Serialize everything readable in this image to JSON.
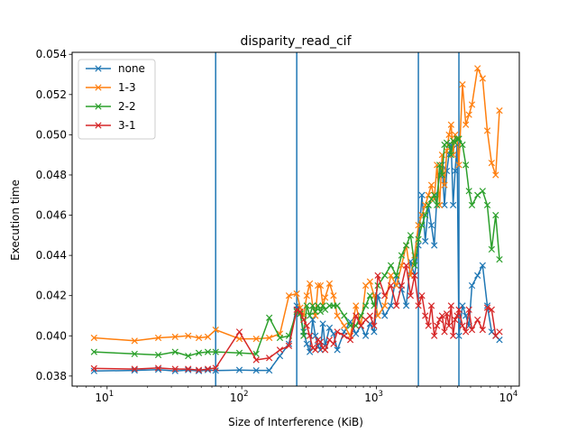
{
  "chart_data": {
    "type": "line",
    "title": "disparity_read_cif",
    "xlabel": "Size of Interference (KiB)",
    "ylabel": "Execution time",
    "xscale": "log",
    "xlim": [
      5.5,
      11500
    ],
    "ylim": [
      0.0375,
      0.0541
    ],
    "xticks": [
      {
        "value": 10,
        "base": "10",
        "exp": "1"
      },
      {
        "value": 100,
        "base": "10",
        "exp": "2"
      },
      {
        "value": 1000,
        "base": "10",
        "exp": "3"
      },
      {
        "value": 10000,
        "base": "10",
        "exp": "4"
      }
    ],
    "yticks": [
      0.038,
      0.04,
      0.042,
      0.044,
      0.046,
      0.048,
      0.05,
      0.052,
      0.054
    ],
    "ytick_labels": [
      "0.038",
      "0.040",
      "0.042",
      "0.044",
      "0.046",
      "0.048",
      "0.050",
      "0.052",
      "0.054"
    ],
    "vlines": [
      64,
      256,
      2048,
      4096
    ],
    "vline_color": "#1f77b4",
    "grid": false,
    "legend_position": "top-left",
    "series": [
      {
        "name": "none",
        "color": "#1f77b4",
        "marker": "x",
        "x": [
          8,
          16,
          24,
          32,
          40,
          48,
          56,
          64,
          96,
          128,
          160,
          192,
          224,
          256,
          272,
          288,
          304,
          320,
          336,
          352,
          368,
          384,
          400,
          416,
          448,
          480,
          512,
          576,
          640,
          704,
          768,
          832,
          896,
          960,
          1024,
          1152,
          1280,
          1408,
          1536,
          1664,
          1792,
          1920,
          2048,
          2176,
          2304,
          2432,
          2560,
          2688,
          2816,
          2944,
          3072,
          3200,
          3328,
          3456,
          3584,
          3712,
          3840,
          3968,
          4096,
          4352,
          4608,
          4864,
          5120,
          5632,
          6144,
          6656,
          7168,
          7680,
          8192
        ],
        "y": [
          0.03825,
          0.03828,
          0.03832,
          0.03825,
          0.0383,
          0.03825,
          0.0383,
          0.03827,
          0.0383,
          0.03828,
          0.03828,
          0.039,
          0.0396,
          0.0415,
          0.0411,
          0.0402,
          0.0396,
          0.0392,
          0.0408,
          0.04,
          0.0395,
          0.0393,
          0.0406,
          0.0395,
          0.0404,
          0.0401,
          0.0393,
          0.0402,
          0.0407,
          0.0401,
          0.0405,
          0.04,
          0.0406,
          0.0402,
          0.042,
          0.041,
          0.0415,
          0.043,
          0.0423,
          0.0415,
          0.0437,
          0.043,
          0.0445,
          0.047,
          0.0447,
          0.0465,
          0.0455,
          0.0445,
          0.047,
          0.048,
          0.0485,
          0.0465,
          0.0482,
          0.049,
          0.0495,
          0.0465,
          0.0482,
          0.0495,
          0.04,
          0.0415,
          0.041,
          0.0405,
          0.0425,
          0.043,
          0.0435,
          0.0415,
          0.0402,
          0.04,
          0.0398
        ]
      },
      {
        "name": "1-3",
        "color": "#ff7f0e",
        "marker": "x",
        "x": [
          8,
          16,
          24,
          32,
          40,
          48,
          56,
          64,
          96,
          128,
          160,
          192,
          224,
          256,
          272,
          288,
          304,
          320,
          336,
          352,
          368,
          384,
          400,
          416,
          448,
          480,
          512,
          576,
          640,
          704,
          768,
          832,
          896,
          960,
          1024,
          1152,
          1280,
          1408,
          1536,
          1664,
          1792,
          1920,
          2048,
          2176,
          2304,
          2432,
          2560,
          2688,
          2816,
          2944,
          3072,
          3200,
          3328,
          3456,
          3584,
          3712,
          3840,
          3968,
          4096,
          4352,
          4608,
          4864,
          5120,
          5632,
          6144,
          6656,
          7168,
          7680,
          8192
        ],
        "y": [
          0.0399,
          0.03975,
          0.0399,
          0.03995,
          0.04,
          0.0399,
          0.03995,
          0.0403,
          0.03985,
          0.03985,
          0.0399,
          0.0401,
          0.042,
          0.0421,
          0.0414,
          0.041,
          0.042,
          0.0426,
          0.0415,
          0.041,
          0.0425,
          0.0425,
          0.0415,
          0.0419,
          0.0426,
          0.042,
          0.041,
          0.0405,
          0.04,
          0.0415,
          0.0405,
          0.0425,
          0.0427,
          0.042,
          0.041,
          0.0415,
          0.043,
          0.0425,
          0.0435,
          0.0445,
          0.043,
          0.044,
          0.0455,
          0.046,
          0.0465,
          0.047,
          0.0475,
          0.0468,
          0.0485,
          0.0465,
          0.049,
          0.0475,
          0.0492,
          0.05,
          0.0505,
          0.049,
          0.05,
          0.0498,
          0.0485,
          0.0525,
          0.0505,
          0.051,
          0.0515,
          0.0533,
          0.0528,
          0.0502,
          0.0486,
          0.048,
          0.0512
        ]
      },
      {
        "name": "2-2",
        "color": "#2ca02c",
        "marker": "x",
        "x": [
          8,
          16,
          24,
          32,
          40,
          48,
          56,
          64,
          96,
          128,
          160,
          192,
          224,
          256,
          272,
          288,
          304,
          320,
          336,
          352,
          368,
          384,
          400,
          416,
          448,
          480,
          512,
          576,
          640,
          704,
          768,
          832,
          896,
          960,
          1024,
          1152,
          1280,
          1408,
          1536,
          1664,
          1792,
          1920,
          2048,
          2176,
          2304,
          2432,
          2560,
          2688,
          2816,
          2944,
          3072,
          3200,
          3328,
          3456,
          3584,
          3712,
          3840,
          3968,
          4096,
          4352,
          4608,
          4864,
          5120,
          5632,
          6144,
          6656,
          7168,
          7680,
          8192
        ],
        "y": [
          0.0392,
          0.0391,
          0.03905,
          0.0392,
          0.039,
          0.03915,
          0.0392,
          0.0392,
          0.03915,
          0.0391,
          0.0409,
          0.0399,
          0.04,
          0.0412,
          0.0411,
          0.04,
          0.0415,
          0.041,
          0.0415,
          0.0412,
          0.0415,
          0.0412,
          0.0415,
          0.0413,
          0.0415,
          0.0415,
          0.0415,
          0.041,
          0.0405,
          0.0405,
          0.041,
          0.0415,
          0.042,
          0.0415,
          0.0425,
          0.043,
          0.0435,
          0.043,
          0.044,
          0.0445,
          0.045,
          0.0435,
          0.0448,
          0.0455,
          0.046,
          0.0465,
          0.0468,
          0.047,
          0.0465,
          0.0485,
          0.048,
          0.0495,
          0.0496,
          0.0495,
          0.049,
          0.0497,
          0.0496,
          0.0498,
          0.0498,
          0.0495,
          0.0485,
          0.0472,
          0.0465,
          0.047,
          0.0472,
          0.0465,
          0.0443,
          0.046,
          0.0438
        ]
      },
      {
        "name": "3-1",
        "color": "#d62728",
        "marker": "x",
        "x": [
          8,
          16,
          24,
          32,
          40,
          48,
          56,
          64,
          96,
          128,
          160,
          192,
          224,
          256,
          272,
          288,
          304,
          320,
          336,
          352,
          368,
          384,
          400,
          416,
          448,
          480,
          512,
          576,
          640,
          704,
          768,
          832,
          896,
          960,
          1024,
          1152,
          1280,
          1408,
          1536,
          1664,
          1792,
          1920,
          2048,
          2176,
          2304,
          2432,
          2560,
          2688,
          2816,
          2944,
          3072,
          3200,
          3328,
          3456,
          3584,
          3712,
          3840,
          3968,
          4096,
          4352,
          4608,
          4864,
          5120,
          5632,
          6144,
          6656,
          7168,
          7680,
          8192
        ],
        "y": [
          0.03838,
          0.03835,
          0.0384,
          0.03835,
          0.03835,
          0.0383,
          0.03835,
          0.0384,
          0.0402,
          0.0388,
          0.0389,
          0.0393,
          0.0395,
          0.0413,
          0.0412,
          0.0408,
          0.0405,
          0.04,
          0.0394,
          0.0393,
          0.0398,
          0.0397,
          0.0394,
          0.0393,
          0.0398,
          0.0396,
          0.0402,
          0.04,
          0.0398,
          0.041,
          0.0405,
          0.0408,
          0.041,
          0.0405,
          0.043,
          0.042,
          0.0425,
          0.0415,
          0.0425,
          0.0435,
          0.042,
          0.043,
          0.0415,
          0.042,
          0.041,
          0.0405,
          0.0415,
          0.04,
          0.0405,
          0.0408,
          0.041,
          0.0402,
          0.0411,
          0.0405,
          0.0415,
          0.04,
          0.0408,
          0.041,
          0.0413,
          0.0405,
          0.0402,
          0.0413,
          0.0403,
          0.0408,
          0.0403,
          0.0414,
          0.0413,
          0.04,
          0.0402
        ]
      }
    ]
  }
}
